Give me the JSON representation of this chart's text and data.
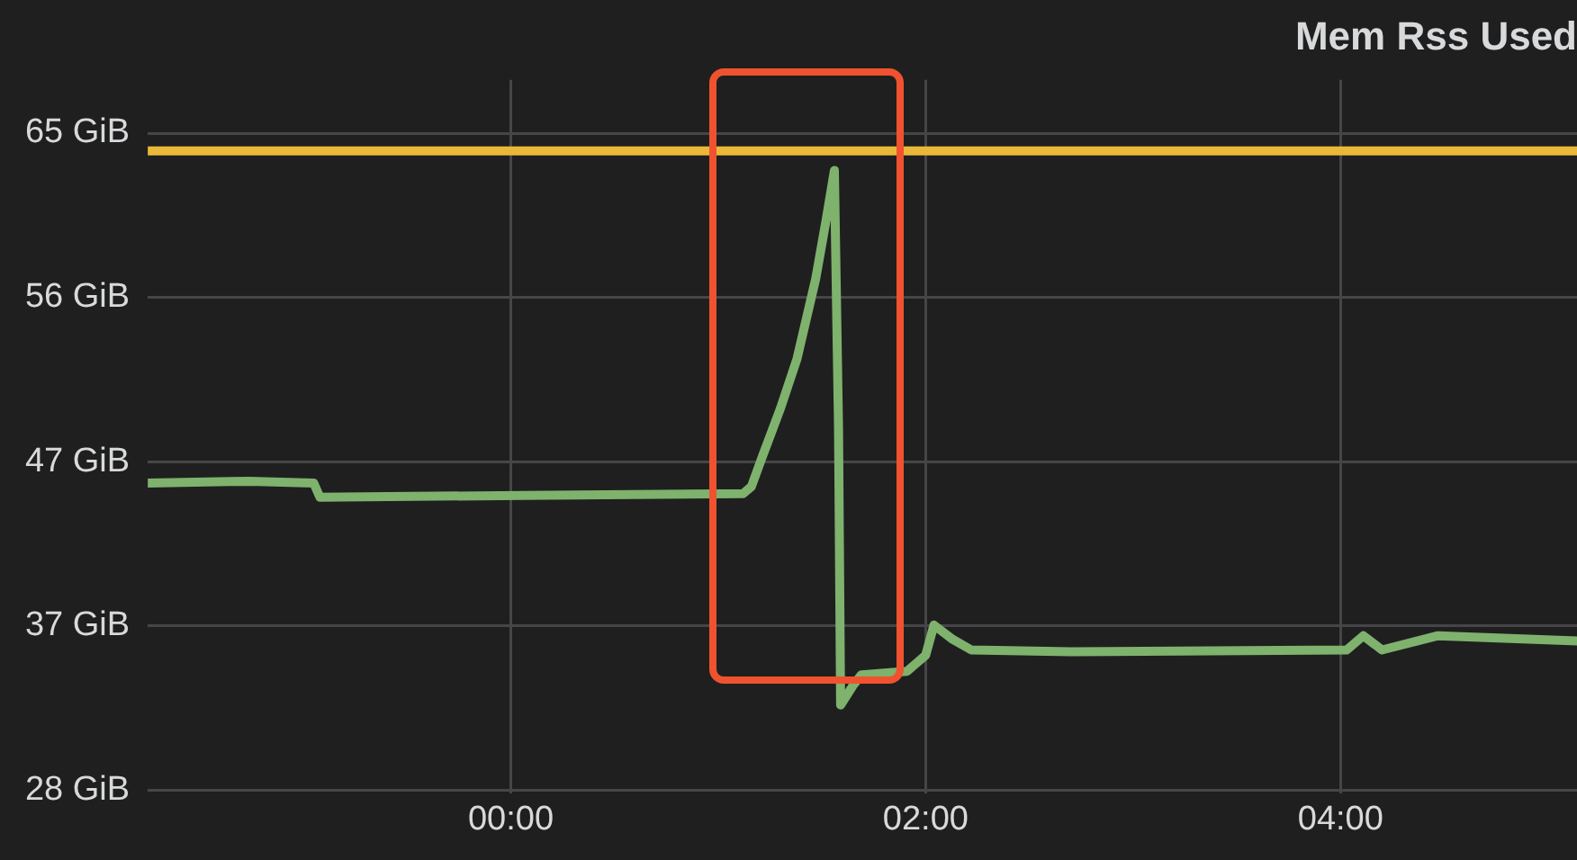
{
  "chart_data": {
    "type": "line",
    "title": "Mem Rss Used",
    "xlim": [
      -1.75,
      5.14
    ],
    "xticks": [
      {
        "value": 0,
        "label": "00:00"
      },
      {
        "value": 2,
        "label": "02:00"
      },
      {
        "value": 4,
        "label": "04:00"
      }
    ],
    "ylim": [
      27.8,
      68
    ],
    "yticks": [
      {
        "value": 28,
        "label": "28 GiB"
      },
      {
        "value": 37.25,
        "label": "37 GiB"
      },
      {
        "value": 46.5,
        "label": "47 GiB"
      },
      {
        "value": 55.75,
        "label": "56 GiB"
      },
      {
        "value": 65,
        "label": "65 GiB"
      }
    ],
    "grid": true,
    "legend": false,
    "marker": "none",
    "line_style": "solid",
    "ref_lines": [
      {
        "axis": "y",
        "value": 64,
        "color": "#eab839",
        "line_style": "solid"
      }
    ],
    "series": [
      {
        "color": "#7eb26d",
        "x": [
          -1.75,
          -1.26,
          -0.95,
          -0.92,
          0.06,
          1.12,
          1.16,
          1.21,
          1.3,
          1.38,
          1.47,
          1.52,
          1.56,
          1.58,
          1.59,
          1.65,
          1.69,
          1.91,
          2.0,
          2.04,
          2.13,
          2.22,
          2.7,
          4.03,
          4.11,
          4.2,
          4.47,
          5.14
        ],
        "values": [
          45.3,
          45.4,
          45.3,
          44.5,
          44.6,
          44.7,
          45.1,
          46.7,
          49.5,
          52.3,
          56.8,
          60.1,
          62.9,
          48.4,
          32.8,
          33.9,
          34.5,
          34.7,
          35.6,
          37.3,
          36.5,
          35.9,
          35.8,
          35.9,
          36.7,
          35.9,
          36.7,
          36.4
        ]
      }
    ]
  }
}
